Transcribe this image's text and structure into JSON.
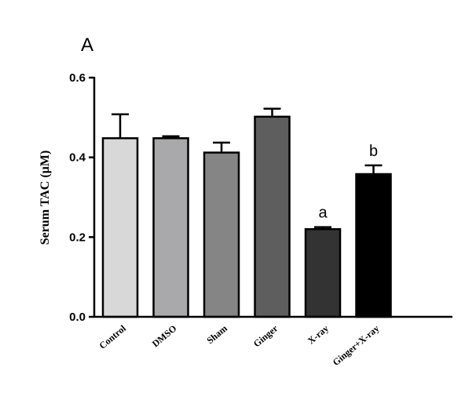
{
  "panel_label": "A",
  "chart_data": {
    "type": "bar",
    "title": "",
    "xlabel": "",
    "ylabel": "Serum TAC (µM)",
    "ylim": [
      0,
      0.6
    ],
    "yticks": [
      0.0,
      0.2,
      0.4,
      0.6
    ],
    "ytick_labels": [
      "0.0",
      "0.2",
      "0.4",
      "0.6"
    ],
    "categories": [
      "Control",
      "DMSO",
      "Sham",
      "Ginger",
      "X-ray",
      "Ginger+X-ray"
    ],
    "values": [
      0.448,
      0.448,
      0.412,
      0.502,
      0.22,
      0.358
    ],
    "errors": [
      0.06,
      0.005,
      0.025,
      0.02,
      0.005,
      0.022
    ],
    "annotations": [
      "",
      "",
      "",
      "",
      "a",
      "b"
    ],
    "colors": [
      "#d8d8d8",
      "#a9a9ab",
      "#858585",
      "#5e5e5e",
      "#333333",
      "#000000"
    ],
    "grid": false,
    "legend": "none"
  }
}
